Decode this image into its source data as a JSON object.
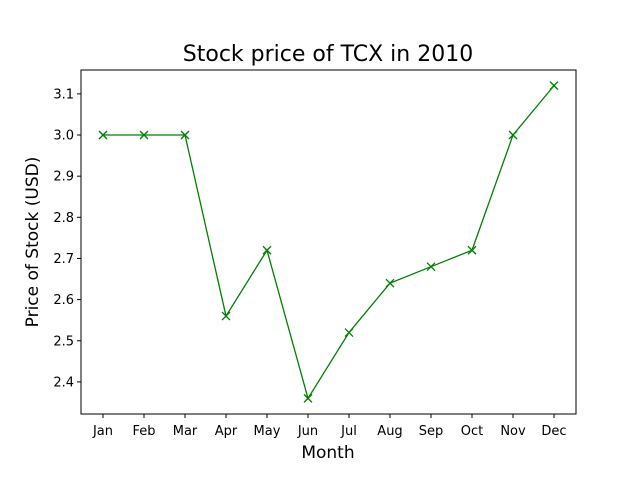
{
  "chart_data": {
    "type": "line",
    "title": "Stock price of TCX in 2010",
    "xlabel": "Month",
    "ylabel": "Price of Stock (USD)",
    "categories": [
      "Jan",
      "Feb",
      "Mar",
      "Apr",
      "May",
      "Jun",
      "Jul",
      "Aug",
      "Sep",
      "Oct",
      "Nov",
      "Dec"
    ],
    "series": [
      {
        "values": [
          3.0,
          3.0,
          3.0,
          2.56,
          2.72,
          2.36,
          2.52,
          2.64,
          2.68,
          2.72,
          3.0,
          3.12
        ],
        "color": "#008000",
        "marker": "x"
      }
    ],
    "yticks": [
      "2.4",
      "2.5",
      "2.6",
      "2.7",
      "2.8",
      "2.9",
      "3.0",
      "3.1"
    ],
    "ylim": [
      2.322,
      3.158
    ],
    "grid": false
  }
}
